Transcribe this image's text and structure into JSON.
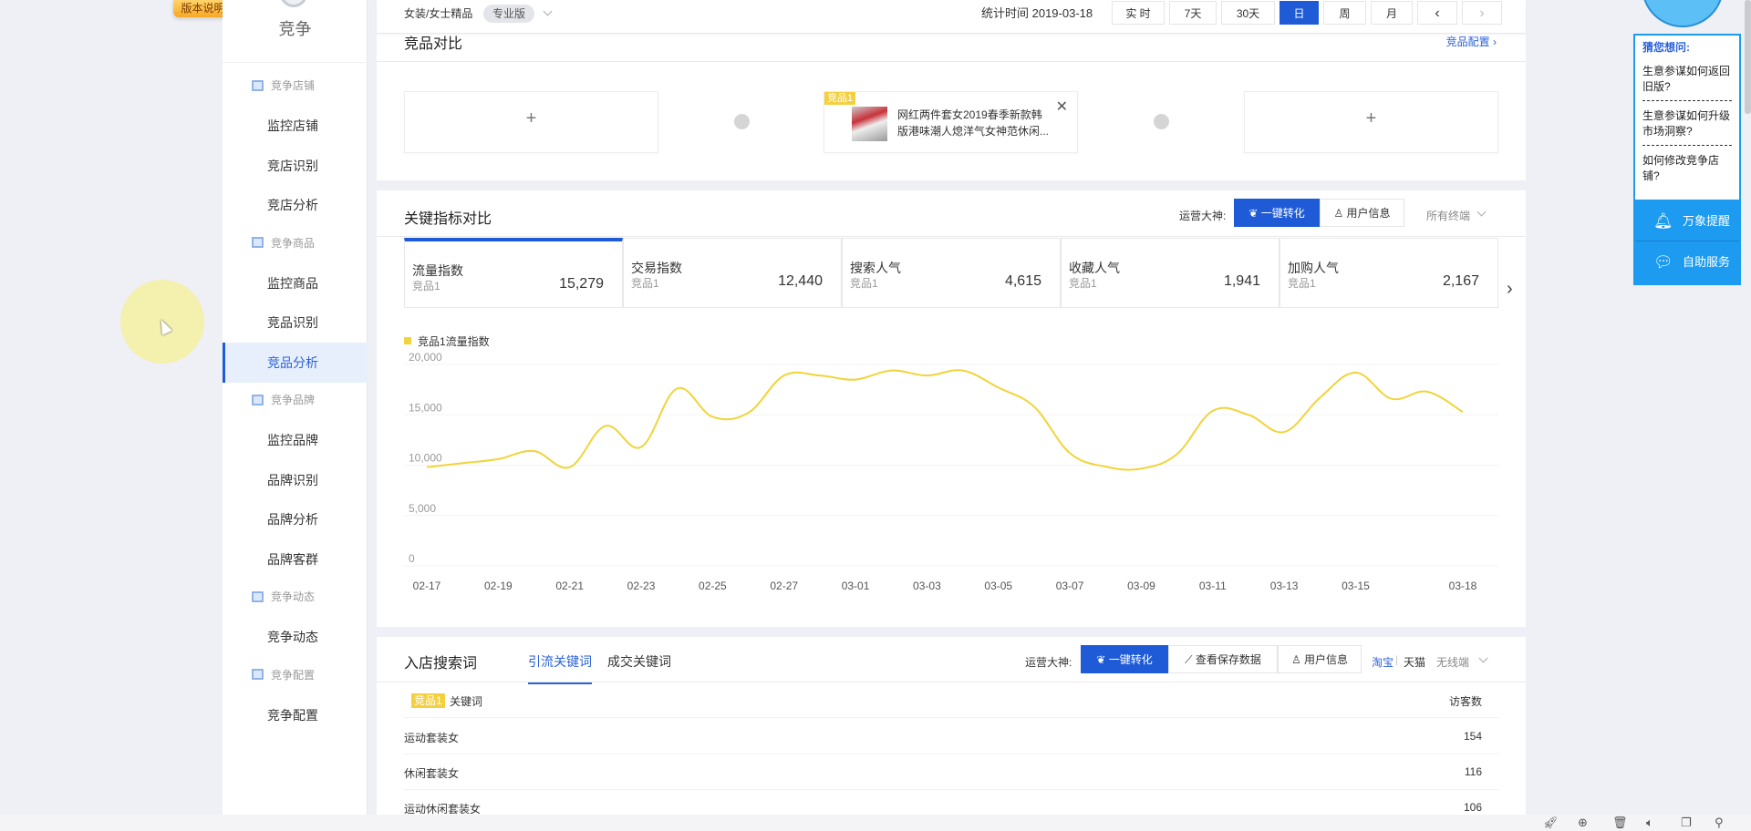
{
  "version_badge": "版本说明",
  "sidebar": {
    "title": "竞争",
    "groups": [
      {
        "label": "竞争店铺",
        "items": [
          "监控店铺",
          "竞店识别",
          "竞店分析"
        ]
      },
      {
        "label": "竞争商品",
        "items": [
          "监控商品",
          "竞品识别",
          "竞品分析"
        ]
      },
      {
        "label": "竞争品牌",
        "items": [
          "监控品牌",
          "品牌识别",
          "品牌分析",
          "品牌客群"
        ]
      },
      {
        "label": "竞争动态",
        "items": [
          "竞争动态"
        ]
      },
      {
        "label": "竞争配置",
        "items": [
          "竞争配置"
        ]
      }
    ],
    "active": "竞品分析"
  },
  "topbar": {
    "category": "女装/女士精品",
    "edition": "专业版",
    "stat_time": "统计时间 2019-03-18",
    "ranges": [
      "实 时",
      "7天",
      "30天",
      "日",
      "周",
      "月"
    ],
    "active_range": "日",
    "prev": "‹",
    "next": "›"
  },
  "compare": {
    "title": "竞品对比",
    "config_link": "竞品配置 ›",
    "add": "+",
    "product_tag": "竞品1",
    "product_name": "网红两件套女2019春季新款韩版港味潮人熄洋气女神范休闲...",
    "close": "✕"
  },
  "metrics_card": {
    "title": "关键指标对比",
    "ops_label": "运营大神:",
    "btn_convert": "一键转化",
    "btn_user": "用户信息",
    "terminal": "所有终端",
    "metrics": [
      {
        "name": "流量指数",
        "sub": "竞品1",
        "value": "15,279"
      },
      {
        "name": "交易指数",
        "sub": "竞品1",
        "value": "12,440"
      },
      {
        "name": "搜索人气",
        "sub": "竞品1",
        "value": "4,615"
      },
      {
        "name": "收藏人气",
        "sub": "竞品1",
        "value": "1,941"
      },
      {
        "name": "加购人气",
        "sub": "竞品1",
        "value": "2,167"
      }
    ],
    "next": "›"
  },
  "chart_data": {
    "type": "line",
    "legend": "竞品1流量指数",
    "legend_position": "top-left",
    "color": "#f0d43a",
    "grid": true,
    "ylim": [
      0,
      20000
    ],
    "yticks": [
      "0",
      "5,000",
      "10,000",
      "15,000",
      "20,000"
    ],
    "x": [
      "02-17",
      "02-18",
      "02-19",
      "02-20",
      "02-21",
      "02-22",
      "02-23",
      "02-24",
      "02-25",
      "02-26",
      "02-27",
      "02-28",
      "03-01",
      "03-02",
      "03-03",
      "03-04",
      "03-05",
      "03-06",
      "03-07",
      "03-08",
      "03-09",
      "03-10",
      "03-11",
      "03-12",
      "03-13",
      "03-14",
      "03-15",
      "03-16",
      "03-17",
      "03-18"
    ],
    "xtick_labels": [
      "02-17",
      "02-19",
      "02-21",
      "02-23",
      "02-25",
      "02-27",
      "03-01",
      "03-03",
      "03-05",
      "03-07",
      "03-09",
      "03-11",
      "03-13",
      "03-15",
      "03-18"
    ],
    "values": [
      9800,
      10200,
      10600,
      11400,
      9800,
      13900,
      11800,
      17600,
      14800,
      15200,
      18900,
      18900,
      18500,
      19400,
      18900,
      19400,
      17700,
      15800,
      11200,
      9850,
      9650,
      11100,
      15400,
      15000,
      13300,
      16700,
      19200,
      16600,
      17300,
      15279
    ]
  },
  "search_card": {
    "title": "入店搜索词",
    "tabs": [
      "引流关键词",
      "成交关键词"
    ],
    "ops_label": "运营大神:",
    "btn_convert": "一键转化",
    "btn_saved": "查看保存数据",
    "btn_user": "用户信息",
    "platform_taobao": "淘宝",
    "platform_tmall": "天猫",
    "terminal": "无线端",
    "tag": "竞品1",
    "col_keyword": "关键词",
    "col_visitors": "访客数",
    "rows": [
      {
        "k": "运动套装女",
        "v": "154"
      },
      {
        "k": "休闲套装女",
        "v": "116"
      },
      {
        "k": "运动休闲套装女",
        "v": "106"
      }
    ]
  },
  "help": {
    "title": "猜您想问:",
    "questions": [
      "生意参谋如何返回旧版?",
      "生意参谋如何升级市场洞察?",
      "如何修改竞争店铺?"
    ],
    "btn_remind": "万象提醒",
    "btn_service": "自助服务"
  }
}
